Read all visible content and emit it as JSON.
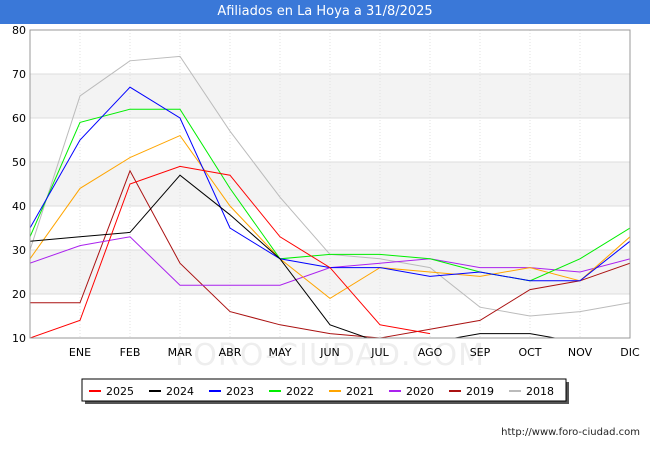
{
  "title": "Afiliados en La Hoya a 31/8/2025",
  "footer_url": "http://www.foro-ciudad.com",
  "watermark": "FORO-CIUDAD.COM",
  "chart_data": {
    "type": "line",
    "title": "Afiliados en La Hoya a 31/8/2025",
    "x": [
      "",
      "ENE",
      "FEB",
      "MAR",
      "ABR",
      "MAY",
      "JUN",
      "JUL",
      "AGO",
      "SEP",
      "OCT",
      "NOV",
      "DIC"
    ],
    "ylim": [
      10,
      80
    ],
    "yticks": [
      10,
      20,
      30,
      40,
      50,
      60,
      70,
      80
    ],
    "grid": true,
    "legend_position": "bottom",
    "series": [
      {
        "name": "2025",
        "color": "#ff0000",
        "values": [
          10,
          14,
          45,
          49,
          47,
          33,
          26,
          13,
          11,
          null,
          null,
          null,
          null
        ]
      },
      {
        "name": "2024",
        "color": "#000000",
        "values": [
          32,
          33,
          34,
          47,
          38,
          28,
          13,
          9,
          9,
          11,
          11,
          9,
          null
        ]
      },
      {
        "name": "2023",
        "color": "#0000ff",
        "values": [
          35,
          55,
          67,
          60,
          35,
          28,
          26,
          26,
          24,
          25,
          23,
          23,
          32
        ]
      },
      {
        "name": "2022",
        "color": "#00ee00",
        "values": [
          33,
          59,
          62,
          62,
          44,
          28,
          29,
          29,
          28,
          25,
          23,
          28,
          35
        ]
      },
      {
        "name": "2021",
        "color": "#ffa500",
        "values": [
          28,
          44,
          51,
          56,
          40,
          28,
          19,
          26,
          25,
          24,
          26,
          23,
          33
        ]
      },
      {
        "name": "2020",
        "color": "#aa22ee",
        "values": [
          27,
          31,
          33,
          22,
          22,
          22,
          26,
          27,
          28,
          26,
          26,
          25,
          28
        ]
      },
      {
        "name": "2019",
        "color": "#aa1111",
        "values": [
          18,
          18,
          48,
          27,
          16,
          13,
          11,
          10,
          12,
          14,
          21,
          23,
          27
        ]
      },
      {
        "name": "2018",
        "color": "#bbbbbb",
        "values": [
          30,
          65,
          73,
          74,
          57,
          42,
          29,
          28,
          26,
          17,
          15,
          16,
          18
        ]
      }
    ]
  }
}
